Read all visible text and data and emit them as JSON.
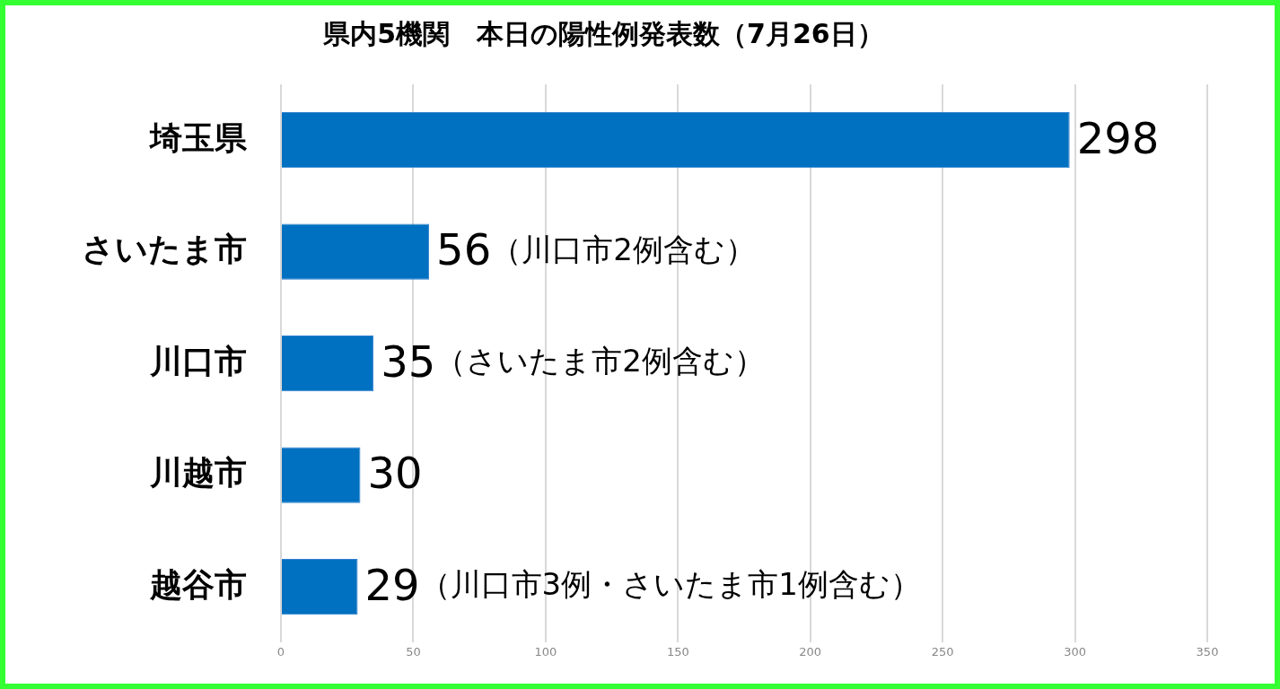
{
  "chart_data": {
    "type": "bar",
    "orientation": "horizontal",
    "title": "県内5機関　本日の陽性例発表数（7月26日）",
    "categories": [
      "埼玉県",
      "さいたま市",
      "川口市",
      "川越市",
      "越谷市"
    ],
    "values": [
      298,
      56,
      35,
      30,
      29
    ],
    "value_labels": [
      "298",
      "56（川口市2例含む）",
      "35（さいたま市2例含む）",
      "30",
      "29（川口市3例・さいたま市1例含む）"
    ],
    "color": "#0070c0",
    "xlim": [
      0,
      350
    ],
    "xticks": [
      0,
      50,
      100,
      150,
      200,
      250,
      300,
      350
    ],
    "grid": "x",
    "legend": false
  }
}
